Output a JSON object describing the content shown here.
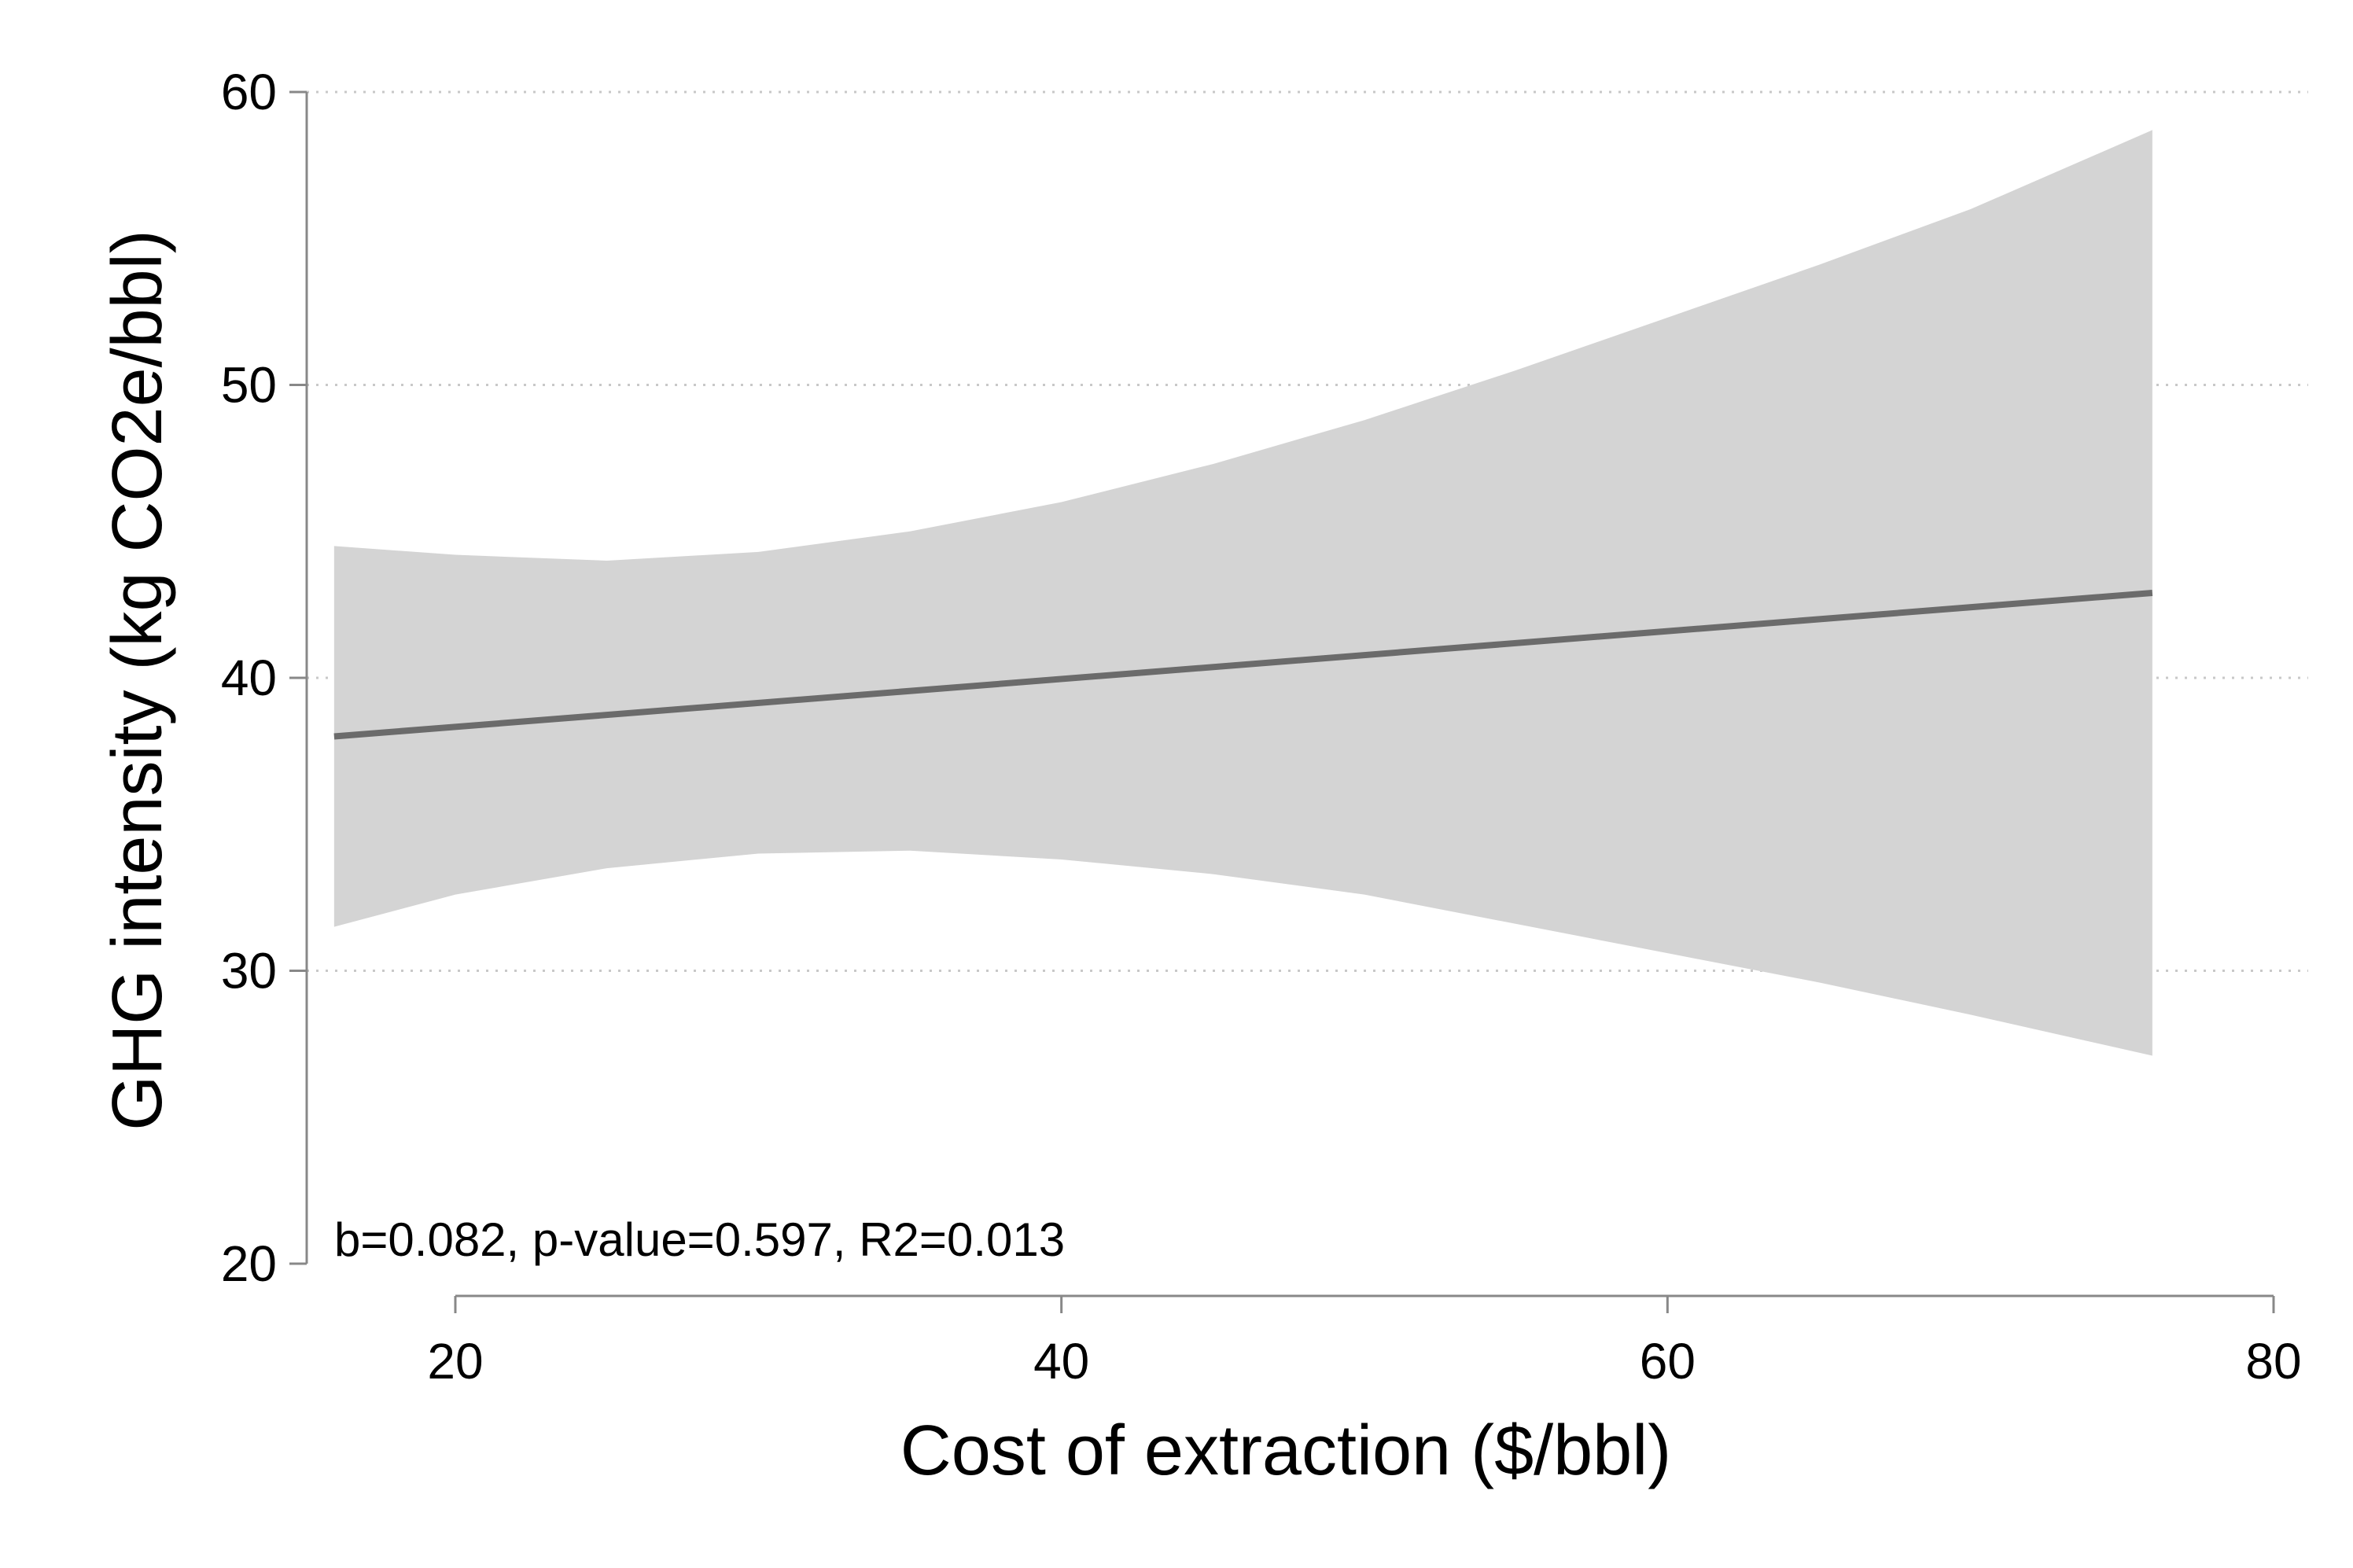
{
  "chart_data": {
    "type": "line",
    "xlabel": "Cost of extraction ($/bbl)",
    "ylabel": "GHG intensity (kg CO2e/bbl)",
    "xlim": [
      15,
      80
    ],
    "ylim": [
      20,
      60
    ],
    "x_ticks": [
      20,
      40,
      60,
      80
    ],
    "y_ticks": [
      20,
      30,
      40,
      50,
      60
    ],
    "grid": "horizontal dotted",
    "annotation": "b=0.082, p-value=0.597, R2=0.013",
    "fit_line": {
      "x": [
        16,
        76
      ],
      "y": [
        38.0,
        42.9
      ]
    },
    "confidence_band": {
      "x": [
        16,
        20,
        25,
        30,
        35,
        40,
        45,
        50,
        55,
        60,
        65,
        70,
        76
      ],
      "upper": [
        44.5,
        44.2,
        44.0,
        44.3,
        45.0,
        46.0,
        47.3,
        48.8,
        50.5,
        52.3,
        54.1,
        56.0,
        58.7
      ],
      "lower": [
        31.5,
        32.6,
        33.5,
        34.0,
        34.1,
        33.8,
        33.3,
        32.6,
        31.6,
        30.6,
        29.6,
        28.5,
        27.1
      ]
    },
    "colors": {
      "band": "#d4d4d4",
      "line": "#6b6b6b",
      "axis": "#888888",
      "grid": "#c8c8c8"
    }
  }
}
